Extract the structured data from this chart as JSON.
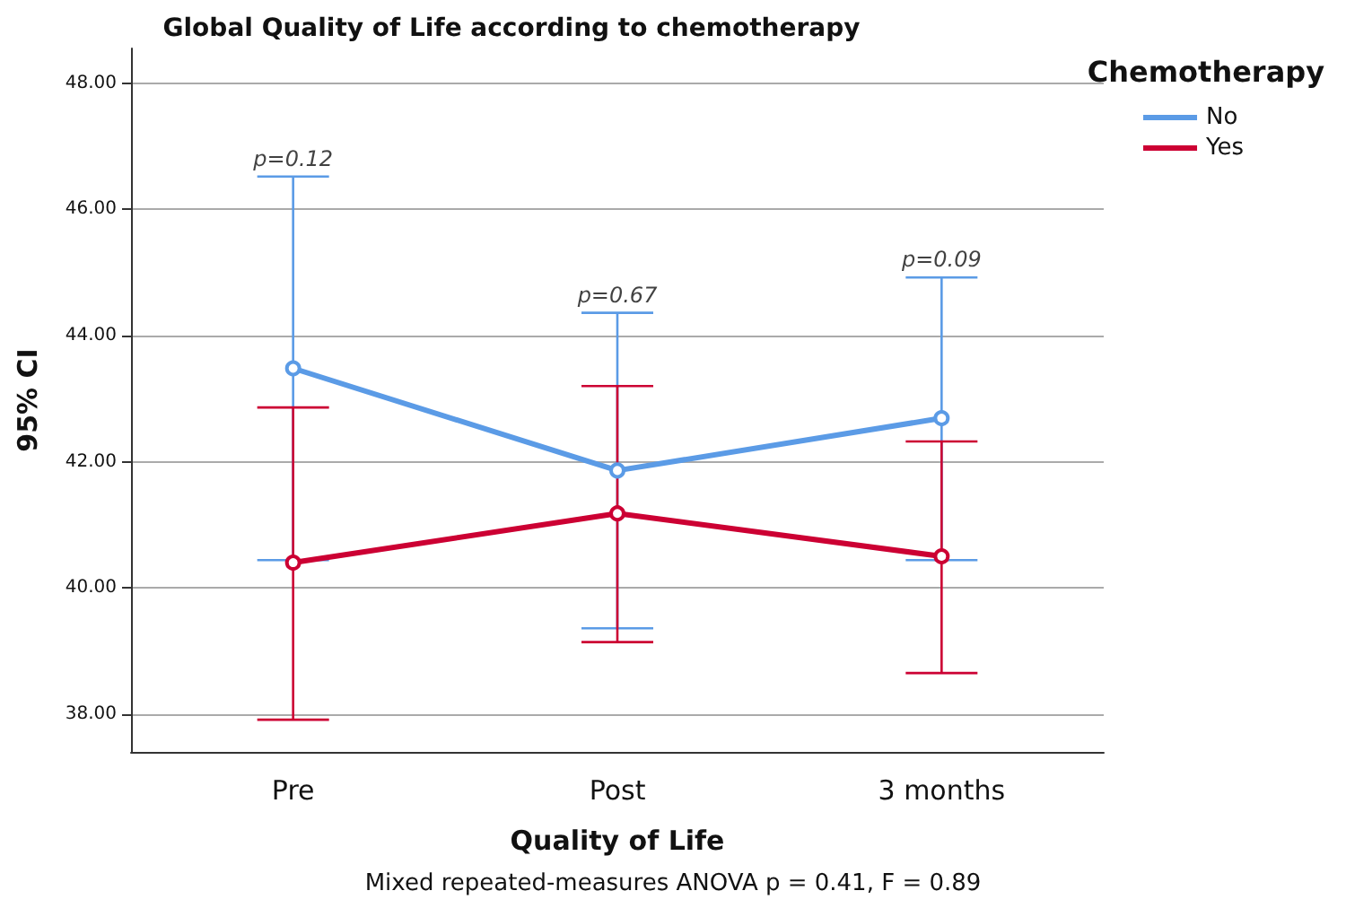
{
  "chart_data": {
    "type": "line",
    "title": "Global Quality of Life according to chemotherapy",
    "xlabel": "Quality of Life",
    "ylabel": "95% CI",
    "legend_title": "Chemotherapy",
    "categories": [
      "Pre",
      "Post",
      "3 months"
    ],
    "series": [
      {
        "name": "No",
        "color": "#5b9be6",
        "values": [
          43.48,
          41.86,
          42.69
        ],
        "errors": [
          [
            40.44,
            46.52
          ],
          [
            39.36,
            44.36
          ],
          [
            40.44,
            44.92
          ]
        ]
      },
      {
        "name": "Yes",
        "color": "#cc0033",
        "values": [
          40.4,
          41.18,
          40.5
        ],
        "errors": [
          [
            37.91,
            42.86
          ],
          [
            39.14,
            43.2
          ],
          [
            38.65,
            42.32
          ]
        ]
      }
    ],
    "ylim": [
      37.4,
      48.55
    ],
    "yticks": [
      {
        "value": 38,
        "label": "38.00"
      },
      {
        "value": 40,
        "label": "40.00"
      },
      {
        "value": 42,
        "label": "42.00"
      },
      {
        "value": 44,
        "label": "44.00"
      },
      {
        "value": 46,
        "label": "46.00"
      },
      {
        "value": 48,
        "label": "48.00"
      }
    ],
    "grid": "y",
    "legend": "top right",
    "marker": "circle",
    "line_style": "solid",
    "annotations": [
      {
        "text": "p=0.12",
        "x": "Pre",
        "y": 46.52
      },
      {
        "text": "p=0.67",
        "x": "Post",
        "y": 44.36
      },
      {
        "text": "p=0.09",
        "x": "3 months",
        "y": 44.92
      },
      "Mixed repeated-measures ANOVA p = 0.41, F = 0.89"
    ]
  }
}
